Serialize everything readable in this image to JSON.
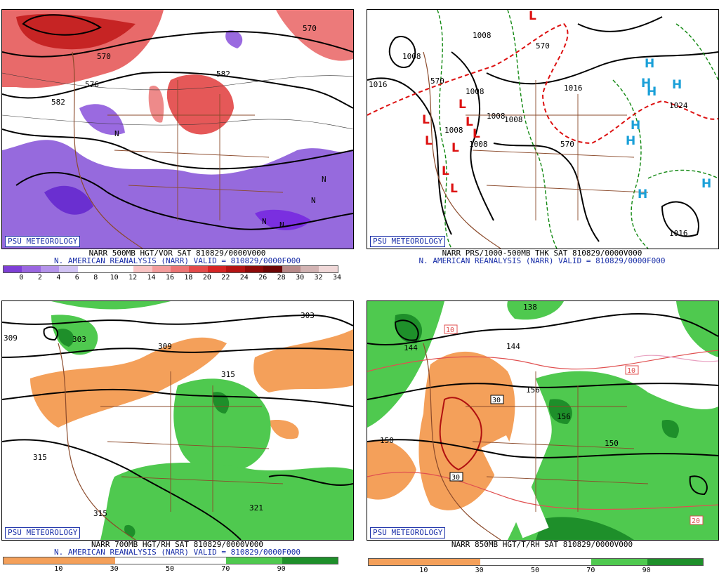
{
  "logo_text": "PSU METEOROLOGY",
  "panels": [
    {
      "id": "vor500",
      "title": "NARR 500MB HGT/VOR SAT 810829/0000V000",
      "subtitle": "N. AMERICAN REANALYSIS (NARR) VALID = 810829/0000F000",
      "colorbar": {
        "ticks": [
          "0",
          "2",
          "4",
          "6",
          "8",
          "10",
          "12",
          "14",
          "16",
          "18",
          "20",
          "22",
          "24",
          "26",
          "28",
          "30",
          "32",
          "34"
        ],
        "colors": [
          "#7e3fd6",
          "#9a66e0",
          "#b493ea",
          "#d1c3f3",
          "#ffffff",
          "#ffffff",
          "#ffffff",
          "#f9c4c4",
          "#f39c9c",
          "#ec7474",
          "#e44a4a",
          "#d62525",
          "#b51414",
          "#8e0a0a",
          "#6d0505",
          "#b88a8a",
          "#d2b3b3",
          "#f0d8d8"
        ]
      },
      "contour_labels": [
        "570",
        "576",
        "582",
        "582",
        "570"
      ],
      "symbol_labels": [
        "N",
        "N",
        "N",
        "N",
        "N"
      ]
    },
    {
      "id": "prs",
      "title": "NARR PRS/1000-500MB THK SAT 810829/0000V000",
      "subtitle": "N. AMERICAN REANALYSIS (NARR) VALID = 810829/0000F000",
      "contour_labels": [
        "1008",
        "1016",
        "1008",
        "1008",
        "1008",
        "1008",
        "1008",
        "1016",
        "1024",
        "1016",
        "570",
        "570",
        "570",
        "1008"
      ],
      "lows": [
        "L",
        "L",
        "L",
        "L",
        "L",
        "L",
        "L",
        "L",
        "L"
      ],
      "highs": [
        "H",
        "H",
        "H",
        "H",
        "H",
        "H",
        "H",
        "H"
      ],
      "colors": {
        "low": "#dd1111",
        "high": "#1aa0d8",
        "thickness": "#dd1111",
        "pressure": "#000000",
        "other": "#118811"
      }
    },
    {
      "id": "rh700",
      "title": "NARR 700MB HGT/RH SAT 810829/0000V000",
      "subtitle": "N. AMERICAN REANALYSIS (NARR) VALID = 810829/0000F000",
      "colorbar": {
        "ticks": [
          "10",
          "30",
          "50",
          "70",
          "90"
        ],
        "colors": [
          "#f4a05a",
          "#f4a05a",
          "#ffffff",
          "#ffffff",
          "#4fc94f",
          "#1e8f2a"
        ]
      },
      "contour_labels": [
        "309",
        "303",
        "309",
        "315",
        "303",
        "315",
        "315",
        "321"
      ]
    },
    {
      "id": "rh850",
      "title": "NARR 850MB HGT/T/RH SAT 810829/0000V000",
      "subtitle": "",
      "colorbar": {
        "ticks": [
          "10",
          "30",
          "50",
          "70",
          "90"
        ],
        "colors": [
          "#f4a05a",
          "#f4a05a",
          "#ffffff",
          "#ffffff",
          "#4fc94f",
          "#1e8f2a"
        ]
      },
      "contour_labels": [
        "144",
        "144",
        "138",
        "150",
        "150",
        "156",
        "156"
      ],
      "temp_labels": [
        "10",
        "10",
        "30",
        "30",
        "20"
      ]
    }
  ]
}
